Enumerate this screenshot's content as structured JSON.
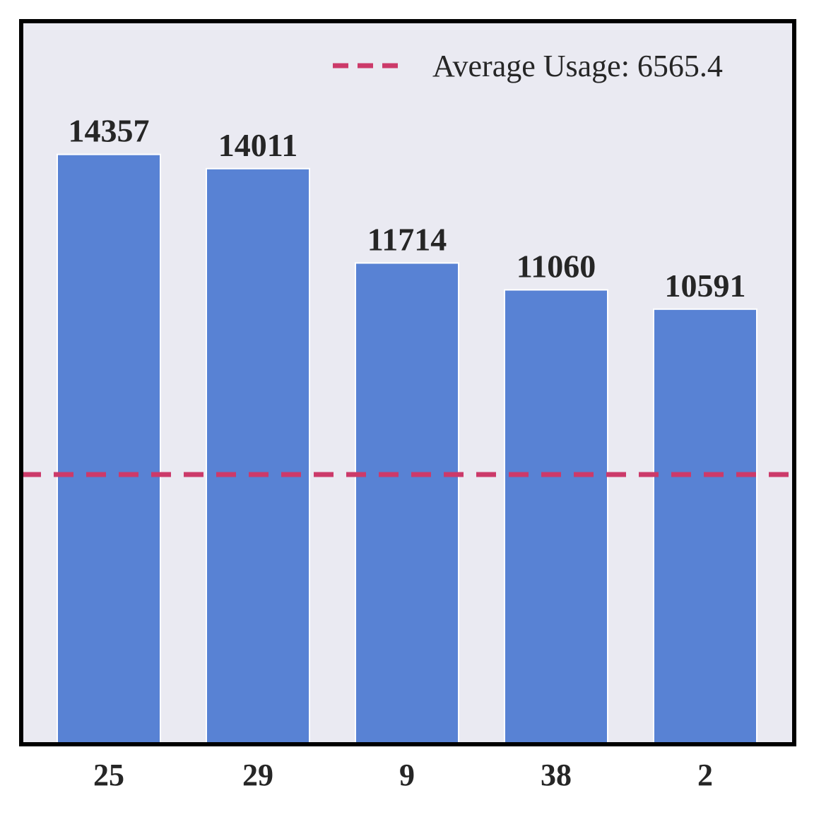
{
  "chart_data": {
    "type": "bar",
    "categories": [
      "25",
      "29",
      "9",
      "38",
      "2"
    ],
    "values": [
      14357,
      14011,
      11714,
      11060,
      10591
    ],
    "value_labels": [
      "14357",
      "14011",
      "11714",
      "11060",
      "10591"
    ],
    "ylim": [
      0,
      17600
    ],
    "grid": false,
    "legend_position": "top-right",
    "reference_line": {
      "value": 6565.4,
      "label": "Average Usage: 6565.4",
      "style": "dashed"
    },
    "colors": {
      "bar": "#5882d4",
      "bar_edge": "#ffffff",
      "reference_line": "#cc3a6a",
      "plot_background": "#eaeaf2",
      "frame": "#000000",
      "text": "#262626"
    }
  }
}
